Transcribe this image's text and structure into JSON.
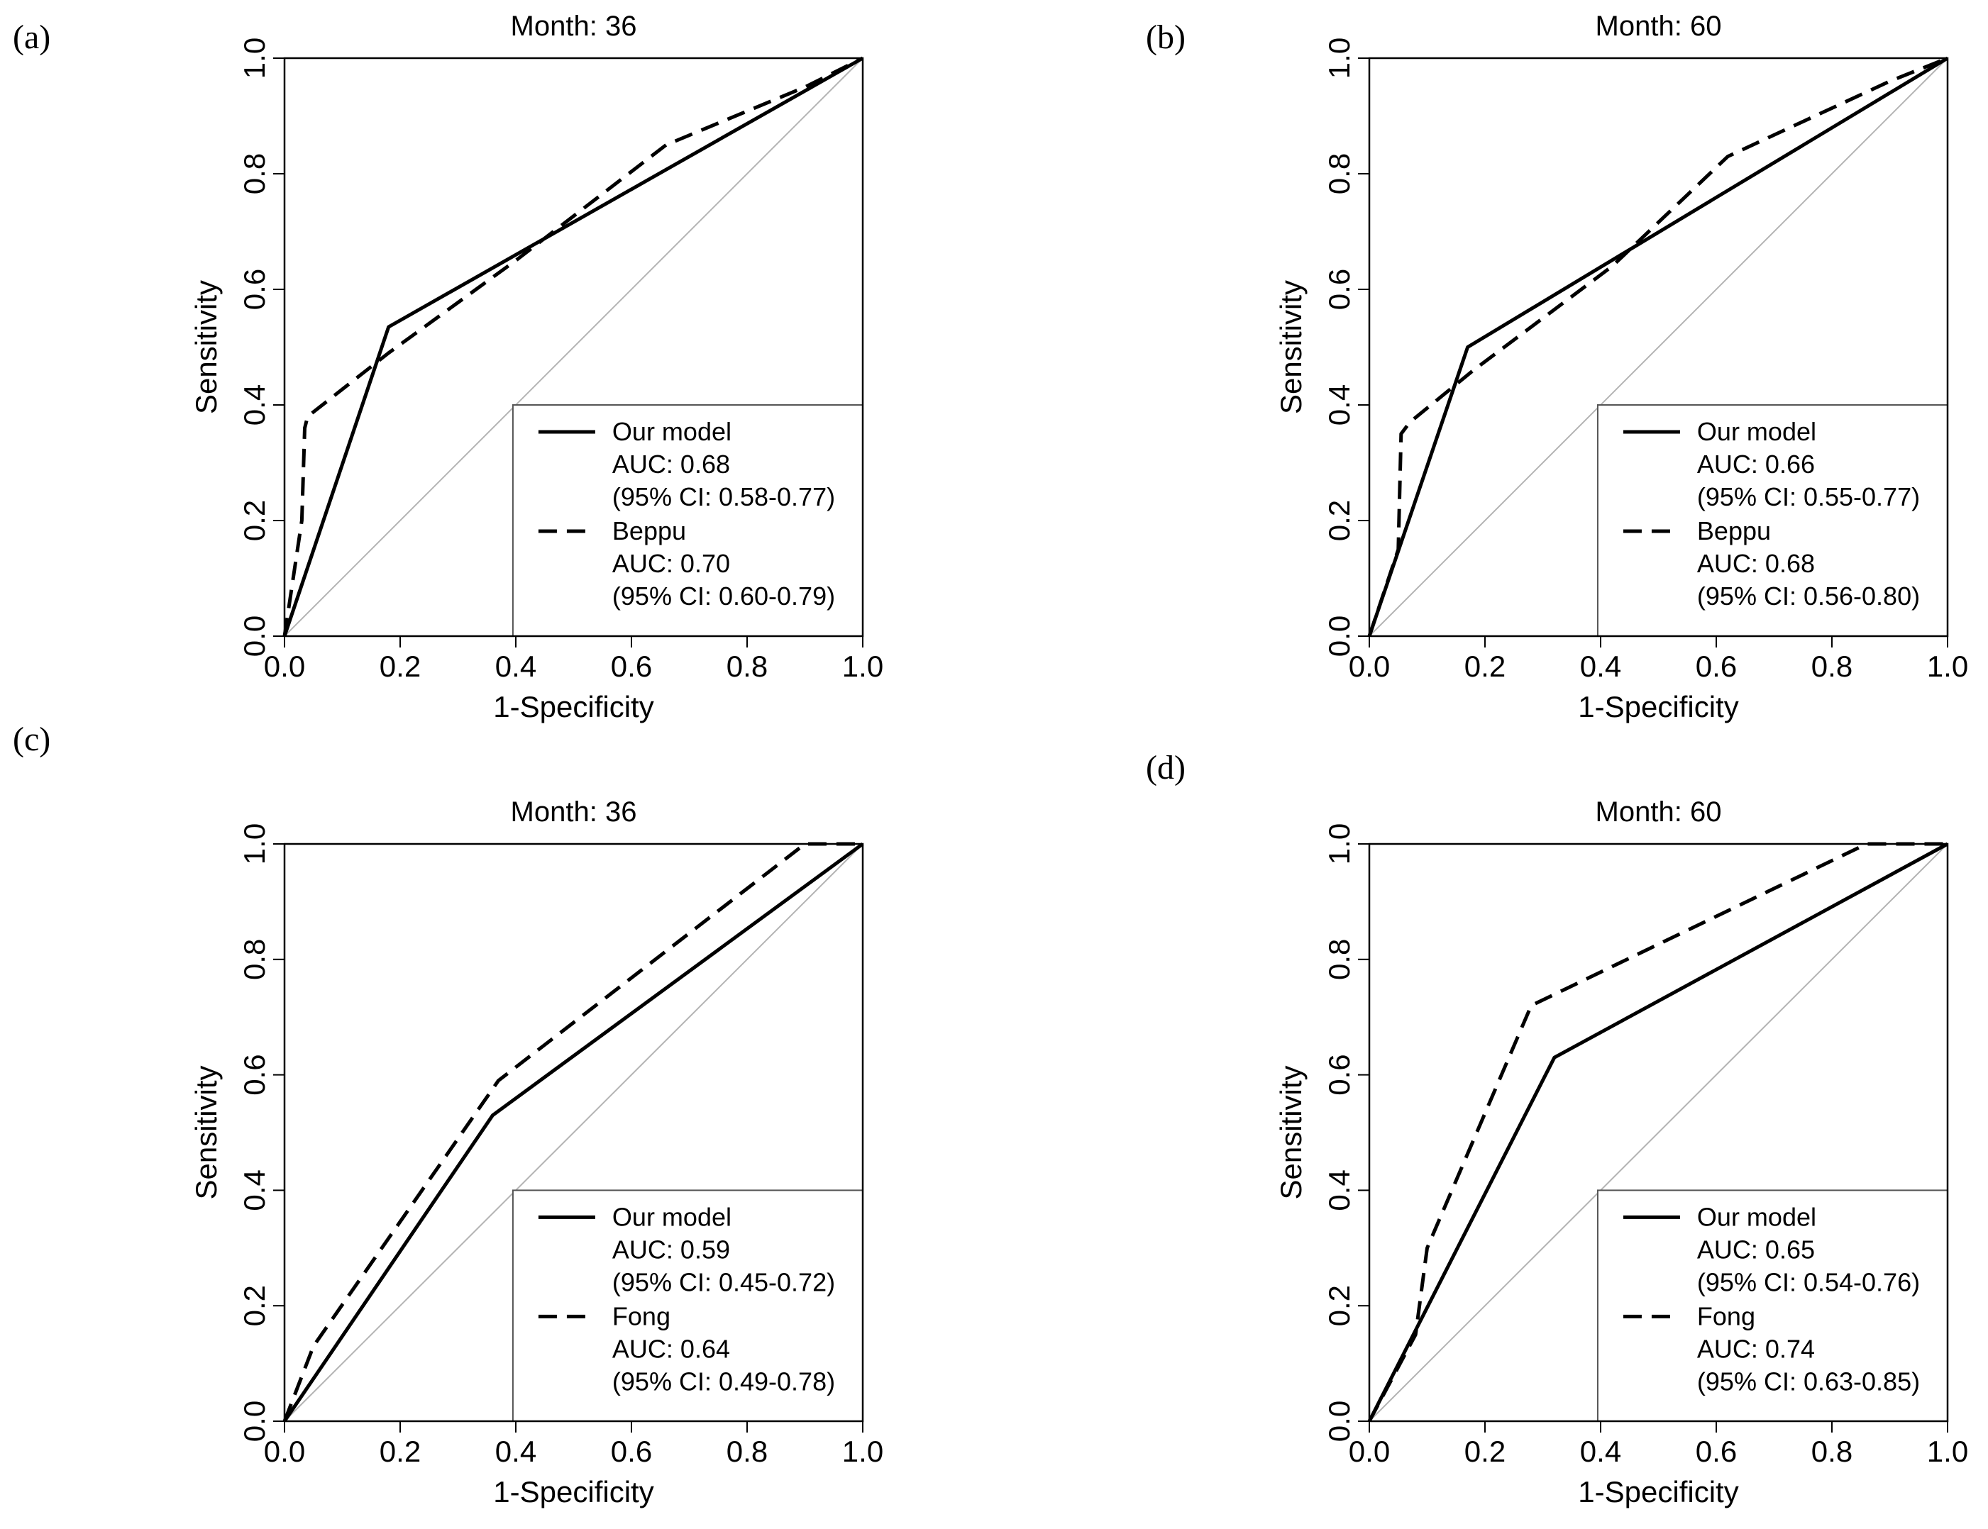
{
  "chart_data": [
    {
      "type": "line",
      "panel_label": "(a)",
      "title": "Month: 36",
      "xlabel": "1-Specificity",
      "ylabel": "Sensitivity",
      "xlim": [
        0,
        1
      ],
      "ylim": [
        0,
        1
      ],
      "ticks": [
        "0.0",
        "0.2",
        "0.4",
        "0.6",
        "0.8",
        "1.0"
      ],
      "legend_position": "bottom-right",
      "series": [
        {
          "name": "Our model",
          "style": "solid",
          "auc": "AUC: 0.68",
          "ci": "(95% CI: 0.58-0.77)",
          "x": [
            0,
            0.18,
            1.0
          ],
          "y": [
            0,
            0.535,
            1.0
          ]
        },
        {
          "name": "Beppu",
          "style": "dashed",
          "auc": "AUC: 0.70",
          "ci": "(95% CI: 0.60-0.79)",
          "x": [
            0,
            0.03,
            0.035,
            0.04,
            0.18,
            0.4,
            0.66,
            0.9,
            1.0
          ],
          "y": [
            0,
            0.2,
            0.36,
            0.38,
            0.49,
            0.65,
            0.85,
            0.95,
            1.0
          ]
        }
      ]
    },
    {
      "type": "line",
      "panel_label": "(b)",
      "title": "Month: 60",
      "xlabel": "1-Specificity",
      "ylabel": "Sensitivity",
      "xlim": [
        0,
        1
      ],
      "ylim": [
        0,
        1
      ],
      "ticks": [
        "0.0",
        "0.2",
        "0.4",
        "0.6",
        "0.8",
        "1.0"
      ],
      "legend_position": "bottom-right",
      "series": [
        {
          "name": "Our model",
          "style": "solid",
          "auc": "AUC: 0.66",
          "ci": "(95% CI: 0.55-0.77)",
          "x": [
            0,
            0.17,
            1.0
          ],
          "y": [
            0,
            0.5,
            1.0
          ]
        },
        {
          "name": "Beppu",
          "style": "dashed",
          "auc": "AUC: 0.68",
          "ci": "(95% CI: 0.56-0.80)",
          "x": [
            0,
            0.05,
            0.055,
            0.07,
            0.18,
            0.42,
            0.62,
            0.9,
            1.0
          ],
          "y": [
            0,
            0.15,
            0.35,
            0.37,
            0.46,
            0.64,
            0.83,
            0.96,
            1.0
          ]
        }
      ]
    },
    {
      "type": "line",
      "panel_label": "(c)",
      "title": "Month: 36",
      "xlabel": "1-Specificity",
      "ylabel": "Sensitivity",
      "xlim": [
        0,
        1
      ],
      "ylim": [
        0,
        1
      ],
      "ticks": [
        "0.0",
        "0.2",
        "0.4",
        "0.6",
        "0.8",
        "1.0"
      ],
      "legend_position": "bottom-right",
      "series": [
        {
          "name": "Our model",
          "style": "solid",
          "auc": "AUC: 0.59",
          "ci": "(95% CI: 0.45-0.72)",
          "x": [
            0,
            0.36,
            1.0
          ],
          "y": [
            0,
            0.53,
            1.0
          ]
        },
        {
          "name": "Fong",
          "style": "dashed",
          "auc": "AUC: 0.64",
          "ci": "(95% CI: 0.49-0.78)",
          "x": [
            0,
            0.05,
            0.37,
            0.9,
            1.0
          ],
          "y": [
            0,
            0.13,
            0.59,
            1.0,
            1.0
          ]
        }
      ]
    },
    {
      "type": "line",
      "panel_label": "(d)",
      "title": "Month: 60",
      "xlabel": "1-Specificity",
      "ylabel": "Sensitivity",
      "xlim": [
        0,
        1
      ],
      "ylim": [
        0,
        1
      ],
      "ticks": [
        "0.0",
        "0.2",
        "0.4",
        "0.6",
        "0.8",
        "1.0"
      ],
      "legend_position": "bottom-right",
      "series": [
        {
          "name": "Our model",
          "style": "solid",
          "auc": "AUC: 0.65",
          "ci": "(95% CI: 0.54-0.76)",
          "x": [
            0,
            0.32,
            1.0
          ],
          "y": [
            0,
            0.63,
            1.0
          ]
        },
        {
          "name": "Fong",
          "style": "dashed",
          "auc": "AUC: 0.74",
          "ci": "(95% CI: 0.63-0.85)",
          "x": [
            0,
            0.08,
            0.1,
            0.28,
            0.86,
            1.0
          ],
          "y": [
            0,
            0.15,
            0.3,
            0.72,
            1.0,
            1.0
          ]
        }
      ]
    }
  ]
}
